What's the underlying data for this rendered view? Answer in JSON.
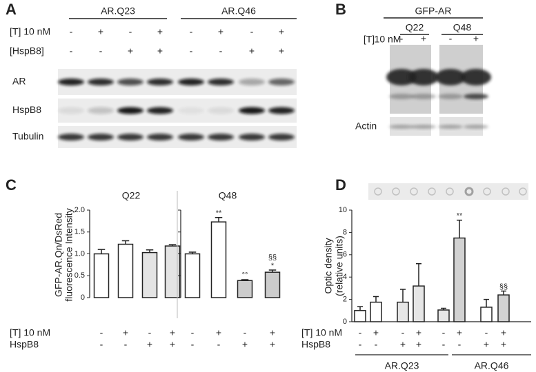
{
  "panel_a": {
    "letter": "A",
    "groups": [
      "AR.Q23",
      "AR.Q46"
    ],
    "conditions": [
      {
        "label": "[T] 10 nM",
        "signs": [
          "-",
          "+",
          "-",
          "+",
          "-",
          "+",
          "-",
          "+"
        ]
      },
      {
        "label": "[HspB8]",
        "signs": [
          "-",
          "-",
          "+",
          "+",
          "-",
          "-",
          "+",
          "+"
        ]
      }
    ],
    "blots": [
      "AR",
      "HspB8",
      "Tubulin"
    ]
  },
  "panel_b": {
    "letter": "B",
    "title": "GFP-AR",
    "groups": [
      "Q22",
      "Q48"
    ],
    "condition_prefix": "[T]",
    "condition_label": "10 nM",
    "signs": [
      "-",
      "+",
      "-",
      "+"
    ],
    "blots": [
      "Actin"
    ]
  },
  "chart_data": [
    {
      "type": "bar",
      "letter": "C",
      "ylabel": [
        "GFP-AR.Qn/DsRed",
        "fluorescence Intensity"
      ],
      "ylim": [
        0,
        2.0
      ],
      "yticks": [
        0,
        0.5,
        {
          "value": 1.0,
          "label": "1.0"
        },
        1.5,
        {
          "value": 2.0,
          "label": "2.0"
        }
      ],
      "panels": [
        {
          "title": "Q22",
          "values": [
            1.0,
            1.22,
            1.03,
            1.18
          ],
          "errors": [
            0.1,
            0.08,
            0.06,
            0.03
          ],
          "colors": [
            "#ffffff",
            "#ffffff",
            "#e4e4e4",
            "#e4e4e4"
          ],
          "annotations": []
        },
        {
          "title": "Q48",
          "values": [
            1.0,
            1.73,
            0.39,
            0.58
          ],
          "errors": [
            0.04,
            0.1,
            0.02,
            0.05
          ],
          "colors": [
            "#ffffff",
            "#ffffff",
            "#cccccc",
            "#cccccc"
          ],
          "annotations": [
            {
              "index": 1,
              "text": "**"
            },
            {
              "index": 2,
              "text": "°°"
            },
            {
              "index": 3,
              "text": "*"
            },
            {
              "index": 3,
              "text": "§§"
            }
          ]
        }
      ],
      "conditions": [
        {
          "label": "[T] 10 nM",
          "signs": [
            "-",
            "+",
            "-",
            "+",
            "-",
            "+",
            "-",
            "+"
          ]
        },
        {
          "label": "HspB8",
          "signs": [
            "-",
            "-",
            "+",
            "+",
            "-",
            "-",
            "+",
            "+"
          ]
        }
      ]
    },
    {
      "type": "bar",
      "letter": "D",
      "ylabel": [
        "Optic density",
        "(relative units)"
      ],
      "ylim": [
        0,
        10
      ],
      "yticks": [
        0,
        2,
        4,
        6,
        8,
        10
      ],
      "values": [
        1.0,
        1.75,
        1.75,
        3.2,
        1.05,
        7.5,
        1.3,
        2.4
      ],
      "errors": [
        0.35,
        0.5,
        1.15,
        2.0,
        0.15,
        1.6,
        0.7,
        0.35
      ],
      "colors": [
        "#ffffff",
        "#ffffff",
        "#e6e6e6",
        "#e6e6e6",
        "#e6e6e6",
        "#d2d2d2",
        "#ffffff",
        "#d2d2d2"
      ],
      "annotations": [
        {
          "index": 5,
          "text": "**"
        },
        {
          "index": 7,
          "text": "§§"
        }
      ],
      "conditions": [
        {
          "label": "[T] 10 nM",
          "signs": [
            "-",
            "+",
            "-",
            "+",
            "-",
            "+",
            "-",
            "+"
          ]
        },
        {
          "label": "HspB8",
          "signs": [
            "-",
            "-",
            "+",
            "+",
            "-",
            "-",
            "+",
            "+"
          ]
        }
      ],
      "groups": [
        "AR.Q23",
        "AR.Q46"
      ]
    }
  ]
}
